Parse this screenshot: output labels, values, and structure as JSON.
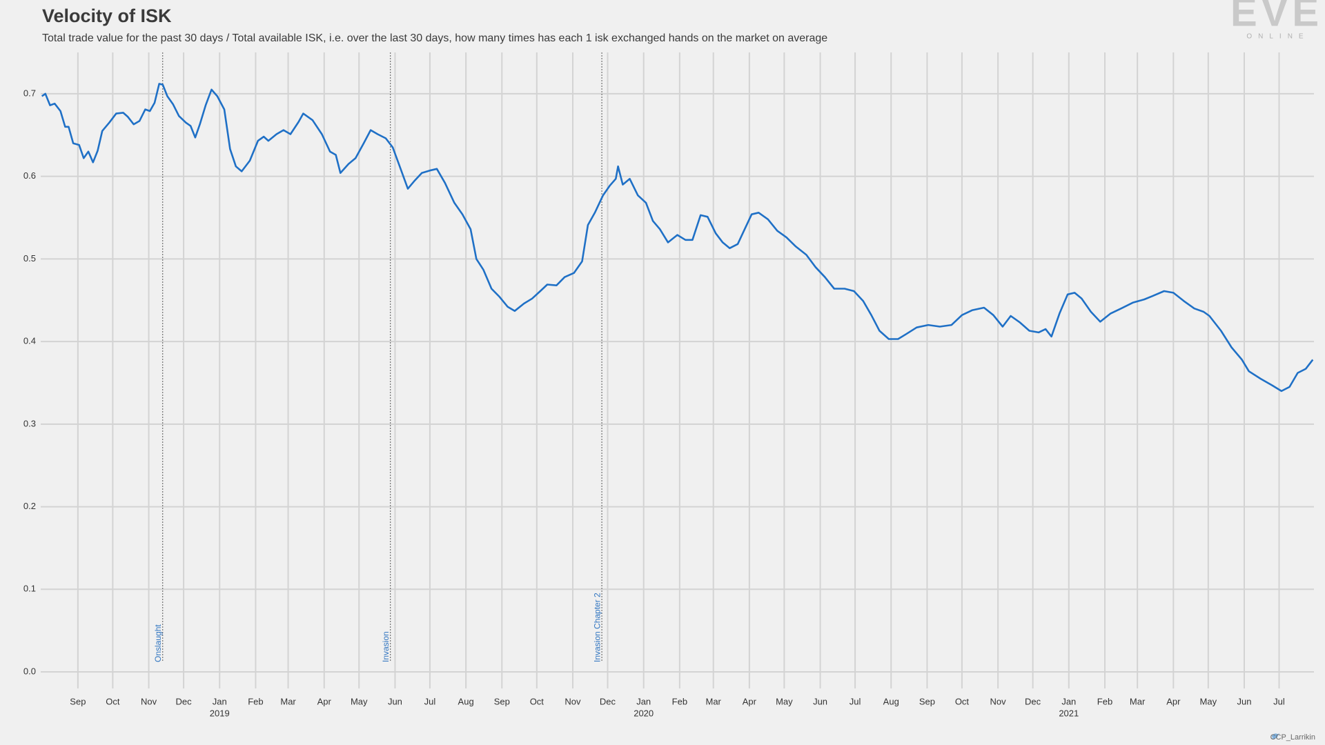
{
  "chart_data": {
    "type": "line",
    "title": "Velocity of ISK",
    "subtitle": "Total trade value for the past 30 days / Total available ISK, i.e. over the last 30 days, how many times has each 1 isk exchanged hands on the market on average",
    "color": "#1f70c6",
    "grid": true,
    "xlim": [
      "2018-07-31",
      "2021-07-31"
    ],
    "ylim": [
      -0.02,
      0.75
    ],
    "yticks": [
      {
        "value": 0,
        "label": "0.0"
      },
      0.1,
      0.2,
      0.3,
      0.4,
      0.5,
      0.6,
      0.7
    ],
    "xticks": [
      {
        "value": "2018-09-01",
        "label": "Sep"
      },
      {
        "value": "2018-10-01",
        "label": "Oct"
      },
      {
        "value": "2018-11-01",
        "label": "Nov"
      },
      {
        "value": "2018-12-01",
        "label": "Dec"
      },
      {
        "value": "2019-01-01",
        "label": "Jan",
        "sublabel": "2019"
      },
      {
        "value": "2019-02-01",
        "label": "Feb"
      },
      {
        "value": "2019-03-01",
        "label": "Mar"
      },
      {
        "value": "2019-04-01",
        "label": "Apr"
      },
      {
        "value": "2019-05-01",
        "label": "May"
      },
      {
        "value": "2019-06-01",
        "label": "Jun"
      },
      {
        "value": "2019-07-01",
        "label": "Jul"
      },
      {
        "value": "2019-08-01",
        "label": "Aug"
      },
      {
        "value": "2019-09-01",
        "label": "Sep"
      },
      {
        "value": "2019-10-01",
        "label": "Oct"
      },
      {
        "value": "2019-11-01",
        "label": "Nov"
      },
      {
        "value": "2019-12-01",
        "label": "Dec"
      },
      {
        "value": "2020-01-01",
        "label": "Jan",
        "sublabel": "2020"
      },
      {
        "value": "2020-02-01",
        "label": "Feb"
      },
      {
        "value": "2020-03-01",
        "label": "Mar"
      },
      {
        "value": "2020-04-01",
        "label": "Apr"
      },
      {
        "value": "2020-05-01",
        "label": "May"
      },
      {
        "value": "2020-06-01",
        "label": "Jun"
      },
      {
        "value": "2020-07-01",
        "label": "Jul"
      },
      {
        "value": "2020-08-01",
        "label": "Aug"
      },
      {
        "value": "2020-09-01",
        "label": "Sep"
      },
      {
        "value": "2020-10-01",
        "label": "Oct"
      },
      {
        "value": "2020-11-01",
        "label": "Nov"
      },
      {
        "value": "2020-12-01",
        "label": "Dec"
      },
      {
        "value": "2021-01-01",
        "label": "Jan",
        "sublabel": "2021"
      },
      {
        "value": "2021-02-01",
        "label": "Feb"
      },
      {
        "value": "2021-03-01",
        "label": "Mar"
      },
      {
        "value": "2021-04-01",
        "label": "Apr"
      },
      {
        "value": "2021-05-01",
        "label": "May"
      },
      {
        "value": "2021-06-01",
        "label": "Jun"
      },
      {
        "value": "2021-07-01",
        "label": "Jul"
      }
    ],
    "events": [
      {
        "date": "2018-11-13",
        "label": "Onslaught"
      },
      {
        "date": "2019-05-28",
        "label": "Invasion"
      },
      {
        "date": "2019-11-26",
        "label": "Invasion Chapter 2"
      }
    ],
    "x": [
      "2018-08-01",
      "2018-08-04",
      "2018-08-08",
      "2018-08-12",
      "2018-08-17",
      "2018-08-21",
      "2018-08-24",
      "2018-08-28",
      "2018-09-02",
      "2018-09-06",
      "2018-09-10",
      "2018-09-14",
      "2018-09-18",
      "2018-09-22",
      "2018-09-28",
      "2018-10-04",
      "2018-10-10",
      "2018-10-14",
      "2018-10-19",
      "2018-10-24",
      "2018-10-29",
      "2018-11-02",
      "2018-11-06",
      "2018-11-10",
      "2018-11-13",
      "2018-11-17",
      "2018-11-22",
      "2018-11-27",
      "2018-12-03",
      "2018-12-07",
      "2018-12-11",
      "2018-12-15",
      "2018-12-20",
      "2018-12-25",
      "2018-12-30",
      "2019-01-05",
      "2019-01-10",
      "2019-01-15",
      "2019-01-20",
      "2019-01-27",
      "2019-02-03",
      "2019-02-08",
      "2019-02-12",
      "2019-02-19",
      "2019-02-25",
      "2019-03-03",
      "2019-03-10",
      "2019-03-14",
      "2019-03-22",
      "2019-03-30",
      "2019-04-06",
      "2019-04-11",
      "2019-04-15",
      "2019-04-22",
      "2019-04-28",
      "2019-05-05",
      "2019-05-11",
      "2019-05-17",
      "2019-05-24",
      "2019-05-30",
      "2019-06-05",
      "2019-06-12",
      "2019-06-18",
      "2019-06-24",
      "2019-07-01",
      "2019-07-07",
      "2019-07-14",
      "2019-07-22",
      "2019-07-29",
      "2019-08-05",
      "2019-08-10",
      "2019-08-16",
      "2019-08-23",
      "2019-08-30",
      "2019-09-06",
      "2019-09-12",
      "2019-09-20",
      "2019-09-27",
      "2019-10-04",
      "2019-10-10",
      "2019-10-18",
      "2019-10-25",
      "2019-11-02",
      "2019-11-09",
      "2019-11-14",
      "2019-11-20",
      "2019-11-27",
      "2019-12-03",
      "2019-12-08",
      "2019-12-10",
      "2019-12-14",
      "2019-12-20",
      "2019-12-27",
      "2020-01-03",
      "2020-01-09",
      "2020-01-15",
      "2020-01-22",
      "2020-01-30",
      "2020-02-06",
      "2020-02-12",
      "2020-02-19",
      "2020-02-25",
      "2020-03-03",
      "2020-03-09",
      "2020-03-15",
      "2020-03-22",
      "2020-03-28",
      "2020-04-03",
      "2020-04-09",
      "2020-04-17",
      "2020-04-25",
      "2020-05-03",
      "2020-05-11",
      "2020-05-20",
      "2020-05-28",
      "2020-06-05",
      "2020-06-13",
      "2020-06-22",
      "2020-06-30",
      "2020-07-08",
      "2020-07-15",
      "2020-07-22",
      "2020-07-30",
      "2020-08-07",
      "2020-08-14",
      "2020-08-23",
      "2020-09-02",
      "2020-09-12",
      "2020-09-22",
      "2020-10-01",
      "2020-10-10",
      "2020-10-20",
      "2020-10-28",
      "2020-11-05",
      "2020-11-12",
      "2020-11-20",
      "2020-11-28",
      "2020-12-06",
      "2020-12-12",
      "2020-12-17",
      "2020-12-24",
      "2020-12-31",
      "2021-01-06",
      "2021-01-12",
      "2021-01-20",
      "2021-01-28",
      "2021-02-06",
      "2021-02-15",
      "2021-02-25",
      "2021-03-07",
      "2021-03-14",
      "2021-03-24",
      "2021-04-01",
      "2021-04-10",
      "2021-04-19",
      "2021-04-27",
      "2021-05-02",
      "2021-05-12",
      "2021-05-21",
      "2021-05-30",
      "2021-06-05",
      "2021-06-15",
      "2021-06-25",
      "2021-07-03",
      "2021-07-10",
      "2021-07-17",
      "2021-07-24",
      "2021-07-30"
    ],
    "values": [
      0.697,
      0.7,
      0.686,
      0.688,
      0.679,
      0.66,
      0.66,
      0.64,
      0.638,
      0.622,
      0.63,
      0.617,
      0.631,
      0.655,
      0.665,
      0.676,
      0.677,
      0.672,
      0.663,
      0.667,
      0.681,
      0.679,
      0.689,
      0.712,
      0.711,
      0.697,
      0.687,
      0.673,
      0.665,
      0.661,
      0.647,
      0.663,
      0.686,
      0.705,
      0.697,
      0.681,
      0.633,
      0.612,
      0.606,
      0.619,
      0.643,
      0.648,
      0.643,
      0.651,
      0.656,
      0.651,
      0.666,
      0.676,
      0.668,
      0.651,
      0.63,
      0.626,
      0.604,
      0.615,
      0.622,
      0.64,
      0.656,
      0.651,
      0.646,
      0.635,
      0.612,
      0.585,
      0.595,
      0.604,
      0.607,
      0.609,
      0.592,
      0.568,
      0.554,
      0.536,
      0.5,
      0.487,
      0.464,
      0.454,
      0.442,
      0.437,
      0.446,
      0.452,
      0.461,
      0.469,
      0.468,
      0.478,
      0.483,
      0.497,
      0.541,
      0.556,
      0.577,
      0.589,
      0.597,
      0.612,
      0.59,
      0.597,
      0.577,
      0.568,
      0.546,
      0.536,
      0.52,
      0.529,
      0.523,
      0.523,
      0.553,
      0.551,
      0.531,
      0.52,
      0.513,
      0.518,
      0.536,
      0.554,
      0.556,
      0.548,
      0.534,
      0.526,
      0.515,
      0.505,
      0.49,
      0.478,
      0.464,
      0.464,
      0.461,
      0.449,
      0.432,
      0.413,
      0.403,
      0.403,
      0.409,
      0.417,
      0.42,
      0.418,
      0.42,
      0.432,
      0.438,
      0.441,
      0.432,
      0.418,
      0.431,
      0.423,
      0.413,
      0.411,
      0.415,
      0.406,
      0.434,
      0.457,
      0.459,
      0.452,
      0.436,
      0.424,
      0.434,
      0.44,
      0.447,
      0.451,
      0.455,
      0.461,
      0.459,
      0.449,
      0.44,
      0.436,
      0.431,
      0.413,
      0.393,
      0.378,
      0.364,
      0.355,
      0.347,
      0.34,
      0.345,
      0.362,
      0.367,
      0.378
    ]
  },
  "brand": {
    "logo": "EVE",
    "tagline": "ONLINE"
  },
  "credit": "CCP_Larrikin"
}
